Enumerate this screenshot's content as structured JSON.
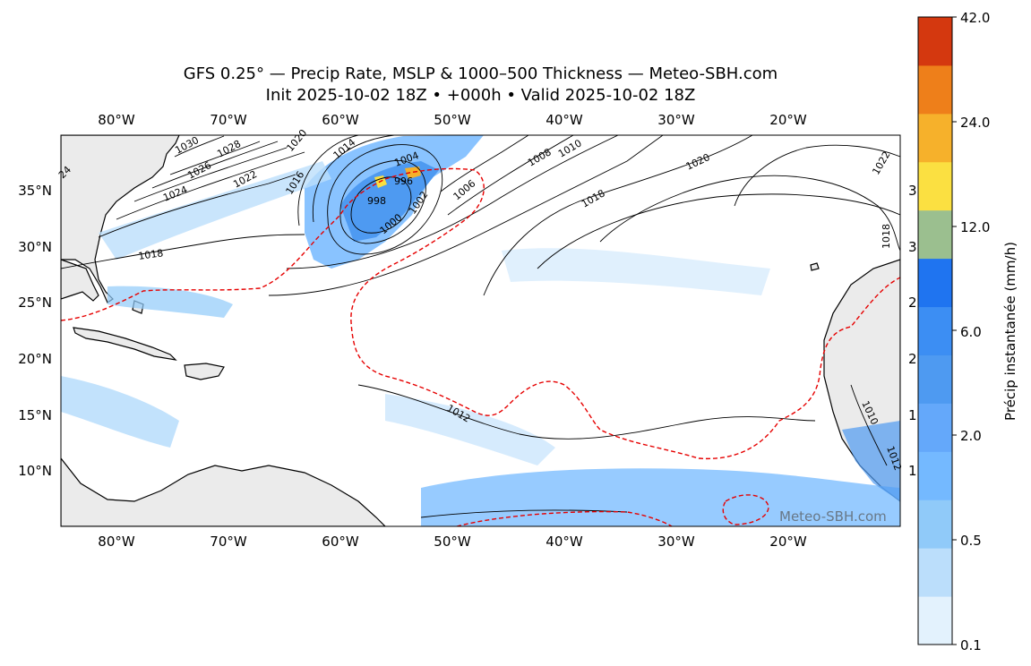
{
  "title": {
    "line1": "GFS 0.25° — Precip Rate, MSLP & 1000–500 Thickness — Meteo-SBH.com",
    "line2": "Init 2025-10-02 18Z • +000h • Valid 2025-10-02 18Z"
  },
  "map": {
    "lon_ticks": [
      "80°W",
      "70°W",
      "60°W",
      "50°W",
      "40°W",
      "30°W",
      "20°W"
    ],
    "lat_ticks": [
      "35°N",
      "30°N",
      "25°N",
      "20°N",
      "15°N",
      "10°N"
    ],
    "right_edge_labels": [
      "3",
      "3",
      "2",
      "2",
      "1",
      "1"
    ],
    "watermark": "Meteo-SBH.com",
    "pressure_labels": [
      "1030",
      "1028",
      "1026",
      "1024",
      "1022",
      "1020",
      "1018",
      "1016",
      "1014",
      "1010",
      "1008",
      "1006",
      "1004",
      "1002",
      "1000",
      "998",
      "996",
      "1012",
      "1020",
      "1018",
      "1022",
      "1018",
      "24",
      "1010",
      "1012"
    ]
  },
  "colorbar": {
    "label": "Précip instantanée (mm/h)",
    "tick_labels": [
      "42.0",
      "24.0",
      "12.0",
      "6.0",
      "2.0",
      "0.5",
      "0.1"
    ],
    "colors": [
      "#e3f2fd",
      "#bbdefb",
      "#90caf9",
      "#74b9ff",
      "#64a8fa",
      "#4e9af1",
      "#3c8ef3",
      "#1f74f0",
      "#9bbf8f",
      "#fbe041",
      "#f6b12b",
      "#ee7f1a",
      "#d4380f"
    ]
  },
  "colors": {
    "land": "#ebebeb",
    "ocean": "#ffffff",
    "thickness_line": "#e60000",
    "isobar": "#000000"
  }
}
